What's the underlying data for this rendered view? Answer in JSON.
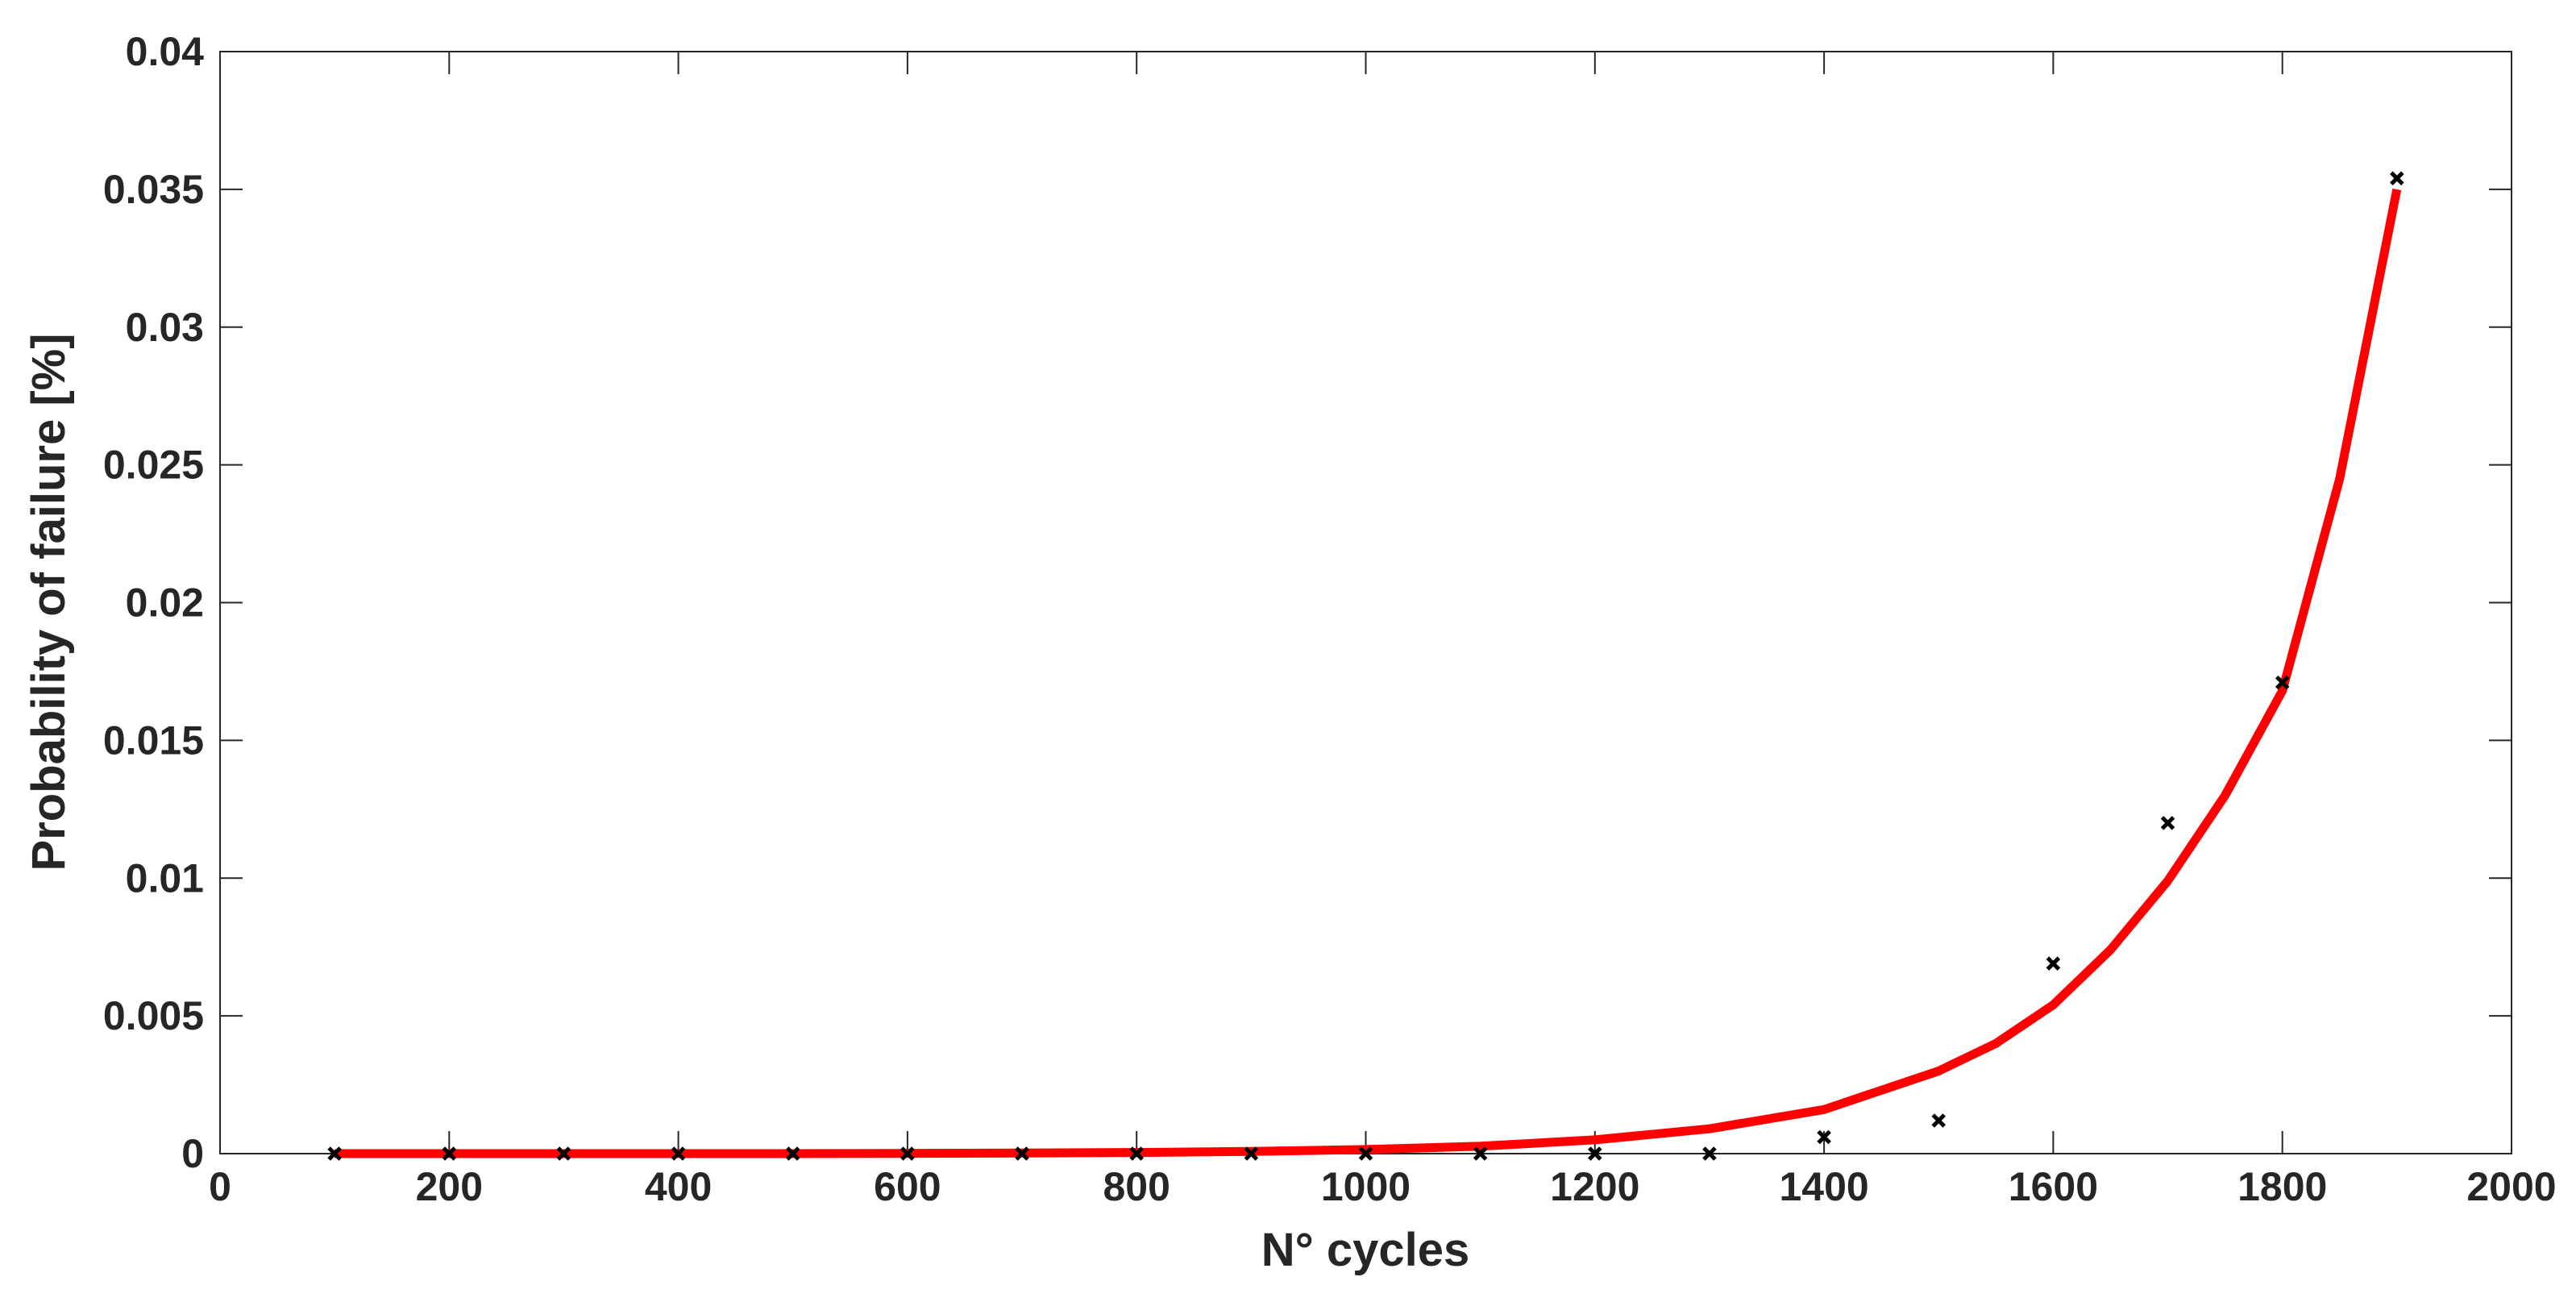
{
  "chart_data": {
    "type": "line",
    "x_label": "N° cycles",
    "y_label": "Probability of failure [%]",
    "xlim": [
      0,
      2000
    ],
    "xticks": [
      0,
      200,
      400,
      600,
      800,
      1000,
      1200,
      1400,
      1600,
      1800,
      2000
    ],
    "ylim": [
      0,
      0.04
    ],
    "yticks": [
      0,
      0.005,
      0.01,
      0.015,
      0.02,
      0.025,
      0.03,
      0.035,
      0.04
    ],
    "grid": false,
    "series": [
      {
        "type": "scatter",
        "color": "#000000",
        "x": [
          100,
          200,
          300,
          400,
          500,
          600,
          700,
          800,
          900,
          1000,
          1100,
          1200,
          1300,
          1400,
          1500,
          1600,
          1700,
          1800,
          1900
        ],
        "values": [
          0,
          0,
          0,
          0,
          0,
          0,
          0,
          0,
          0,
          0,
          0,
          0,
          0,
          0.0006,
          0.0012,
          0.0069,
          0.012,
          0.0171,
          0.0354
        ]
      },
      {
        "type": "line",
        "color": "#ff0000",
        "x": [
          100,
          200,
          300,
          400,
          500,
          600,
          700,
          800,
          900,
          1000,
          1100,
          1200,
          1300,
          1400,
          1500,
          1550,
          1600,
          1650,
          1700,
          1750,
          1800,
          1850,
          1900
        ],
        "values": [
          0,
          0,
          0,
          0,
          0,
          1e-05,
          2e-05,
          4e-05,
          8e-05,
          0.00015,
          0.00027,
          0.0005,
          0.0009,
          0.0016,
          0.003,
          0.004,
          0.0054,
          0.0074,
          0.0099,
          0.013,
          0.0168,
          0.0245,
          0.035
        ]
      }
    ]
  }
}
